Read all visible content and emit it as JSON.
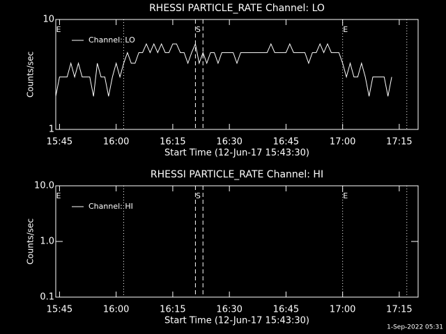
{
  "chart_data": [
    {
      "type": "line",
      "title": "RHESSI PARTICLE_RATE Channel: LO",
      "ylabel": "Counts/sec",
      "xlabel": "Start Time (12-Jun-17 15:43:30)",
      "log_y": true,
      "ylim": [
        1,
        10
      ],
      "yticks": [
        1,
        10
      ],
      "xlim": [
        "15:44",
        "17:20"
      ],
      "xticks": [
        "15:45",
        "16:00",
        "16:15",
        "16:30",
        "16:45",
        "17:00",
        "17:15"
      ],
      "legend": "upper left",
      "markers": [
        {
          "x": "16:02",
          "style": "dotted"
        },
        {
          "x": "16:21",
          "style": "dashed"
        },
        {
          "x": "16:23",
          "style": "dashed"
        },
        {
          "x": "17:00",
          "style": "dotted"
        },
        {
          "x": "17:17",
          "style": "dotted"
        }
      ],
      "marker_labels": [
        {
          "x": "15:44",
          "text": "E"
        },
        {
          "x": "16:21",
          "text": "S"
        },
        {
          "x": "17:00",
          "text": "E"
        }
      ],
      "x": [
        "15:44",
        "15:45",
        "15:46",
        "15:47",
        "15:48",
        "15:49",
        "15:50",
        "15:51",
        "15:52",
        "15:53",
        "15:54",
        "15:55",
        "15:56",
        "15:57",
        "15:58",
        "15:59",
        "16:00",
        "16:01",
        "16:02",
        "16:03",
        "16:04",
        "16:05",
        "16:06",
        "16:07",
        "16:08",
        "16:09",
        "16:10",
        "16:11",
        "16:12",
        "16:13",
        "16:14",
        "16:15",
        "16:16",
        "16:17",
        "16:18",
        "16:19",
        "16:20",
        "16:21",
        "16:22",
        "16:23",
        "16:24",
        "16:25",
        "16:26",
        "16:27",
        "16:28",
        "16:29",
        "16:30",
        "16:31",
        "16:32",
        "16:33",
        "16:34",
        "16:35",
        "16:36",
        "16:37",
        "16:38",
        "16:39",
        "16:40",
        "16:41",
        "16:42",
        "16:43",
        "16:44",
        "16:45",
        "16:46",
        "16:47",
        "16:48",
        "16:49",
        "16:50",
        "16:51",
        "16:52",
        "16:53",
        "16:54",
        "16:55",
        "16:56",
        "16:57",
        "16:58",
        "16:59",
        "17:00",
        "17:01",
        "17:02",
        "17:03",
        "17:04",
        "17:05",
        "17:06",
        "17:07",
        "17:08",
        "17:09",
        "17:10",
        "17:11",
        "17:12",
        "17:13"
      ],
      "series": [
        {
          "name": "Channel: LO",
          "color": "#ffffff",
          "values": [
            2,
            3,
            3,
            3,
            4,
            3,
            4,
            3,
            3,
            3,
            2,
            4,
            3,
            3,
            2,
            3,
            4,
            3,
            4,
            5,
            4,
            4,
            5,
            5,
            6,
            5,
            6,
            5,
            6,
            5,
            5,
            6,
            6,
            5,
            5,
            4,
            5,
            6,
            4,
            5,
            4,
            5,
            5,
            4,
            5,
            5,
            5,
            5,
            4,
            5,
            5,
            5,
            5,
            5,
            5,
            5,
            5,
            6,
            5,
            5,
            5,
            5,
            6,
            5,
            5,
            5,
            5,
            4,
            5,
            5,
            6,
            5,
            6,
            5,
            5,
            5,
            4,
            3,
            4,
            3,
            3,
            4,
            3,
            2,
            3,
            3,
            3,
            3,
            2,
            3
          ]
        }
      ]
    },
    {
      "type": "line",
      "title": "RHESSI PARTICLE_RATE Channel: HI",
      "ylabel": "Counts/sec",
      "xlabel": "Start Time (12-Jun-17 15:43:30)",
      "log_y": true,
      "ylim": [
        0.1,
        10
      ],
      "yticks": [
        0.1,
        {
          "value": 1,
          "label": "1.0"
        },
        {
          "value": 10,
          "label": "10.0"
        }
      ],
      "xlim": [
        "15:44",
        "17:20"
      ],
      "xticks": [
        "15:45",
        "16:00",
        "16:15",
        "16:30",
        "16:45",
        "17:00",
        "17:15"
      ],
      "legend": "upper left",
      "markers": [
        {
          "x": "16:02",
          "style": "dotted"
        },
        {
          "x": "16:21",
          "style": "dashed"
        },
        {
          "x": "16:23",
          "style": "dashed"
        },
        {
          "x": "17:00",
          "style": "dotted"
        },
        {
          "x": "17:17",
          "style": "dotted"
        }
      ],
      "marker_labels": [
        {
          "x": "15:44",
          "text": "E"
        },
        {
          "x": "16:21",
          "text": "S"
        },
        {
          "x": "17:00",
          "text": "E"
        }
      ],
      "x": [],
      "series": [
        {
          "name": "Channel: HI",
          "color": "#ffffff",
          "values": []
        }
      ]
    }
  ],
  "footer": "1-Sep-2022 05:31"
}
